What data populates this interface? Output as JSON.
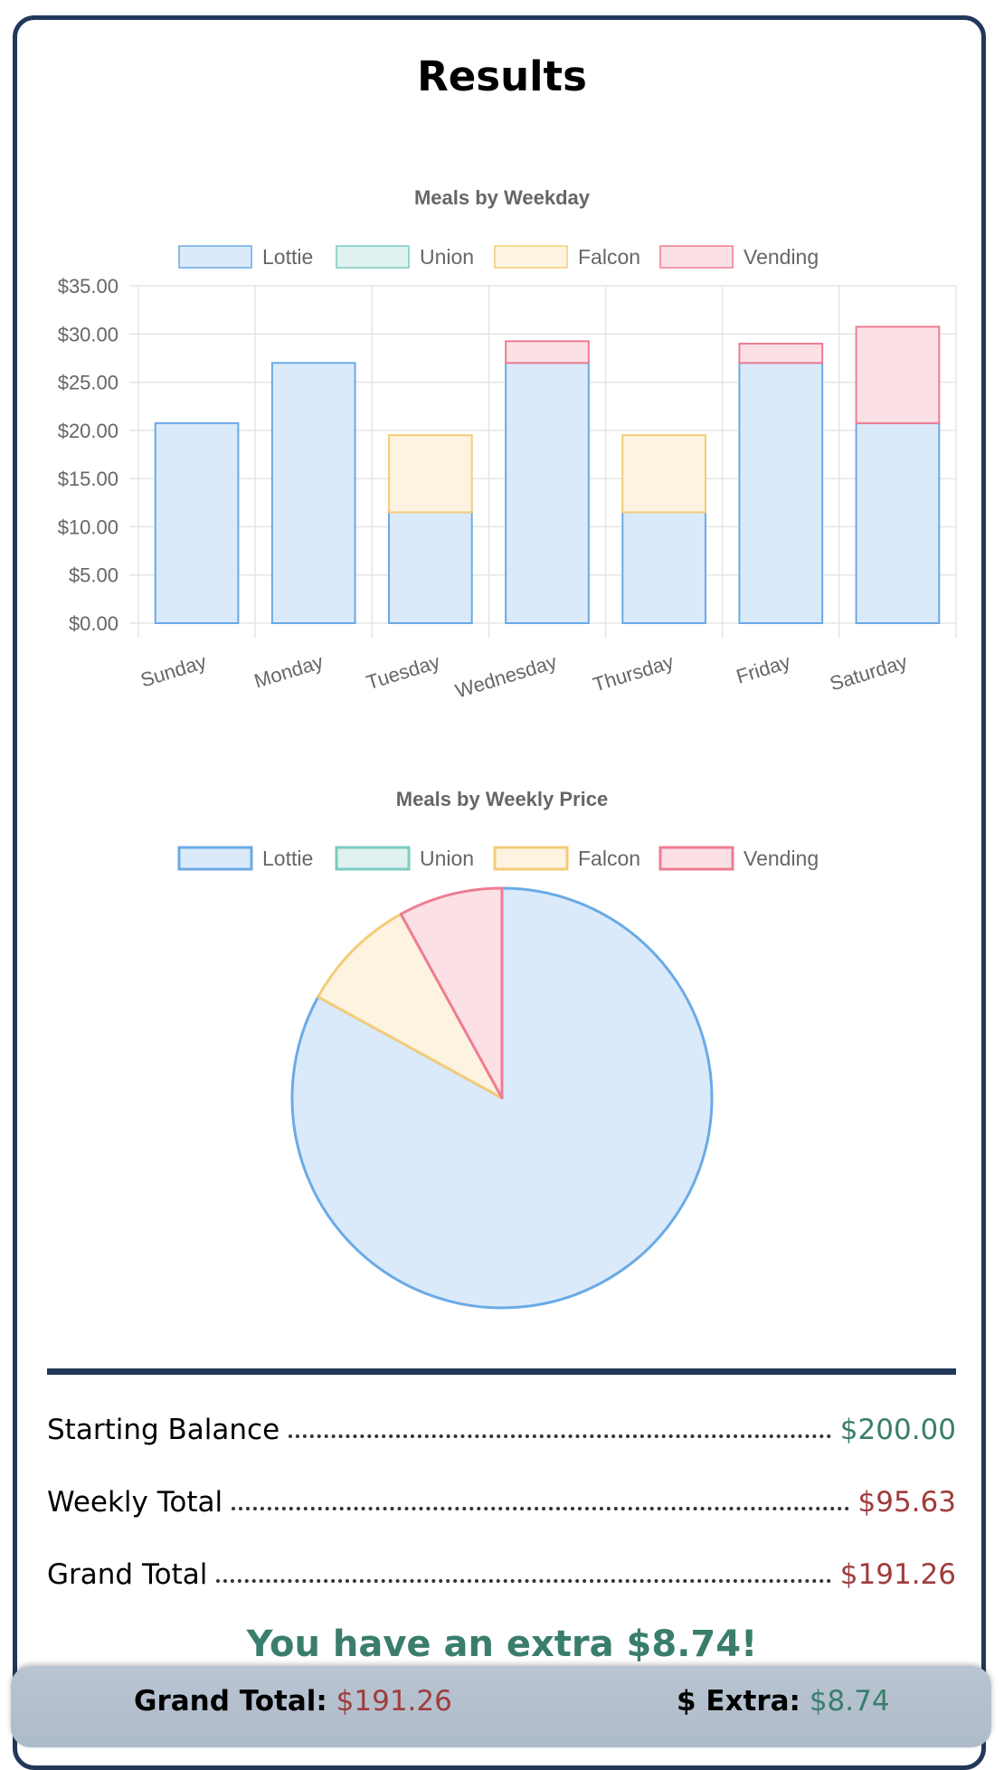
{
  "page": {
    "title": "Results"
  },
  "colors": {
    "frame": "#22385a",
    "green": "#3a7d6c",
    "red": "#a03c3c",
    "footer": "#b4c0ce"
  },
  "chart_data": [
    {
      "type": "bar",
      "stacked": true,
      "title": "Meals by Weekday",
      "legend_position": "top",
      "categories": [
        "Sunday",
        "Monday",
        "Tuesday",
        "Wednesday",
        "Thursday",
        "Friday",
        "Saturday"
      ],
      "series": [
        {
          "name": "Lottie",
          "fill": "#dbeafa",
          "stroke": "#6aaae6",
          "values": [
            20.75,
            27.0,
            11.5,
            27.0,
            11.5,
            27.0,
            20.75
          ]
        },
        {
          "name": "Union",
          "fill": "#dff2ef",
          "stroke": "#7ccbc0",
          "values": [
            0,
            0,
            0,
            0,
            0,
            0,
            0
          ]
        },
        {
          "name": "Falcon",
          "fill": "#fdf3e0",
          "stroke": "#f4cc78",
          "values": [
            0,
            0,
            8.0,
            0,
            8.0,
            0,
            0
          ]
        },
        {
          "name": "Vending",
          "fill": "#fbe1e6",
          "stroke": "#ee7d92",
          "values": [
            0,
            0,
            0,
            2.25,
            0,
            2.0,
            10.0
          ]
        }
      ],
      "yticks": [
        "$0.00",
        "$5.00",
        "$10.00",
        "$15.00",
        "$20.00",
        "$25.00",
        "$30.00",
        "$35.00"
      ],
      "ylim": [
        0,
        35
      ],
      "grid": true
    },
    {
      "type": "pie",
      "title": "Meals by Weekly Price",
      "legend_position": "top",
      "labels": [
        "Lottie",
        "Union",
        "Falcon",
        "Vending"
      ],
      "values": [
        0.83,
        0.0,
        0.09,
        0.08
      ],
      "fills": [
        "#dbeafa",
        "#dff2ef",
        "#fdf3e0",
        "#fbe1e6"
      ],
      "strokes": [
        "#6aaae6",
        "#7ccbc0",
        "#f4cc78",
        "#ee7d92"
      ]
    }
  ],
  "summary": [
    {
      "label": "Starting Balance",
      "value": "$200.00",
      "tone": "green"
    },
    {
      "label": "Weekly Total",
      "value": "$95.63",
      "tone": "red"
    },
    {
      "label": "Grand Total",
      "value": "$191.26",
      "tone": "red"
    }
  ],
  "message": "You have an extra $8.74!",
  "footer": {
    "grand_total_label": "Grand Total:",
    "grand_total_value": "$191.26",
    "extra_label": "$ Extra:",
    "extra_value": "$8.74"
  }
}
